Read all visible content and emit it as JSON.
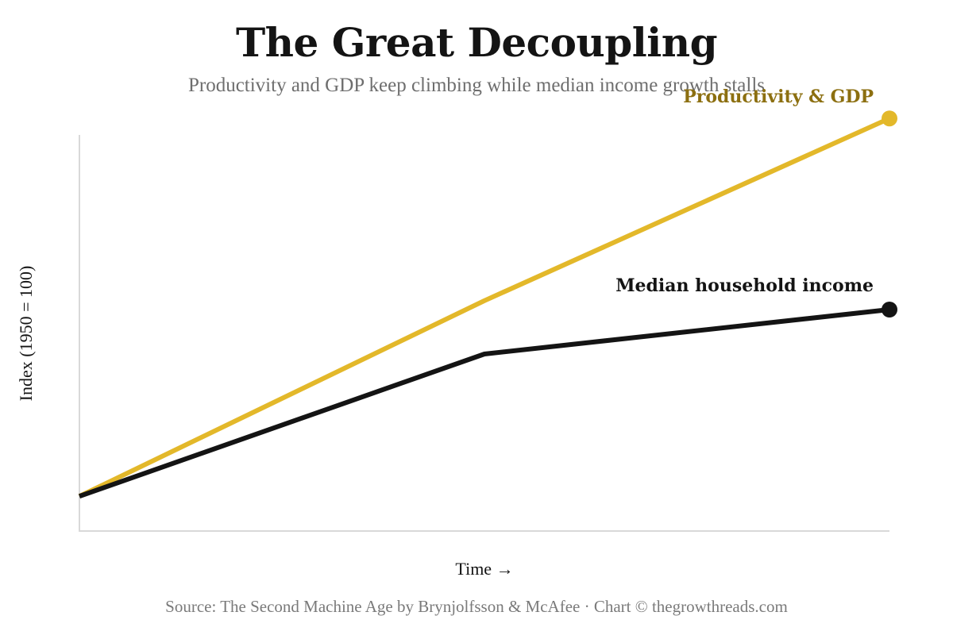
{
  "title": "The Great Decoupling",
  "subtitle": "Productivity and GDP keep climbing while median income growth stalls",
  "source": "Source: The Second Machine Age by Brynjolfsson & McAfee · Chart © thegrowthreads.com",
  "colors": {
    "productivity": "#e3b82a",
    "productivity_label": "#8c6f10",
    "income": "#141414",
    "axis": "#d9d9d9"
  },
  "chart_data": {
    "type": "line",
    "title": "The Great Decoupling",
    "subtitle": "Productivity and GDP keep climbing while median income growth stalls",
    "xlabel": "Time →",
    "ylabel": "Index (1950 = 100)",
    "x": [
      0,
      1,
      2
    ],
    "xlim": [
      0,
      2
    ],
    "ylim": [
      0,
      100
    ],
    "grid": false,
    "legend": "direct labels at line ends",
    "series": [
      {
        "name": "Productivity & GDP",
        "color": "#e3b82a",
        "values": [
          8,
          52,
          93
        ],
        "end_marker": true
      },
      {
        "name": "Median household income",
        "color": "#141414",
        "values": [
          8,
          40,
          50
        ],
        "end_marker": true
      }
    ]
  }
}
